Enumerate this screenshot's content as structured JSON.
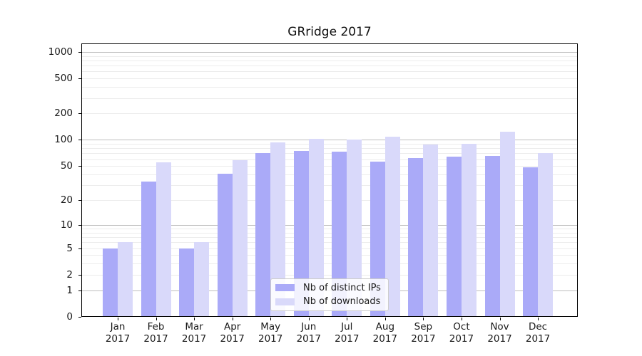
{
  "title": "GRridge 2017",
  "chart_data": {
    "type": "bar",
    "title": "GRridge 2017",
    "x_categories": [
      "Jan",
      "Feb",
      "Mar",
      "Apr",
      "May",
      "Jun",
      "Jul",
      "Aug",
      "Sep",
      "Oct",
      "Nov",
      "Dec"
    ],
    "x_year": "2017",
    "series": [
      {
        "name": "Nb of distinct IPs",
        "color": "#aaaaf8",
        "values": [
          5,
          33,
          5,
          41,
          71,
          75,
          73,
          56,
          62,
          64,
          66,
          48
        ]
      },
      {
        "name": "Nb of downloads",
        "color": "#d9d9fa",
        "values": [
          6,
          55,
          6,
          58,
          94,
          103,
          101,
          109,
          88,
          90,
          124,
          71
        ]
      }
    ],
    "y_scale": "log10(1+v)",
    "y_ticks": [
      0,
      1,
      2,
      5,
      10,
      20,
      50,
      100,
      200,
      500,
      1000
    ],
    "y_max": 1224,
    "grid": "horizontal, minor lines at 2-9 within each decade",
    "legend_position": "lower center",
    "colors": {
      "major_grid": "#bdbdbd",
      "minor_grid": "#ececec",
      "spine": "#000000",
      "text": "#1a1a1a",
      "background": "#ffffff"
    }
  }
}
